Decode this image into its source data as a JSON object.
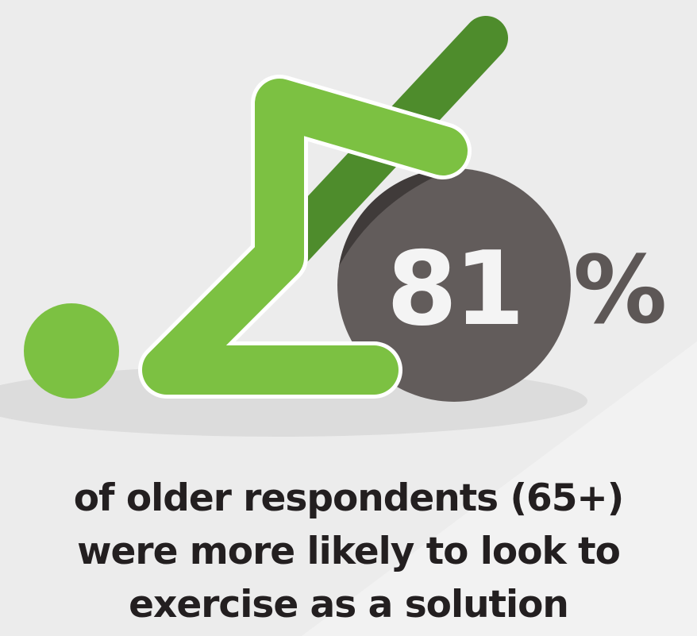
{
  "stat": {
    "value": "81",
    "unit": "%"
  },
  "caption": {
    "lines": [
      "of older respondents (65+)",
      "were more likely to look to",
      "exercise as a solution"
    ]
  },
  "colors": {
    "background": "#ececec",
    "figure_green": "#7cc142",
    "pole_green": "#4e8c2c",
    "ball_gray": "#625c5b",
    "shadow_gray": "#dcdcdc",
    "text_dark": "#231f20"
  },
  "icons": {
    "figure": "person-exercise-icon",
    "ball": "exercise-ball-icon",
    "pole": "exercise-pole-icon"
  }
}
